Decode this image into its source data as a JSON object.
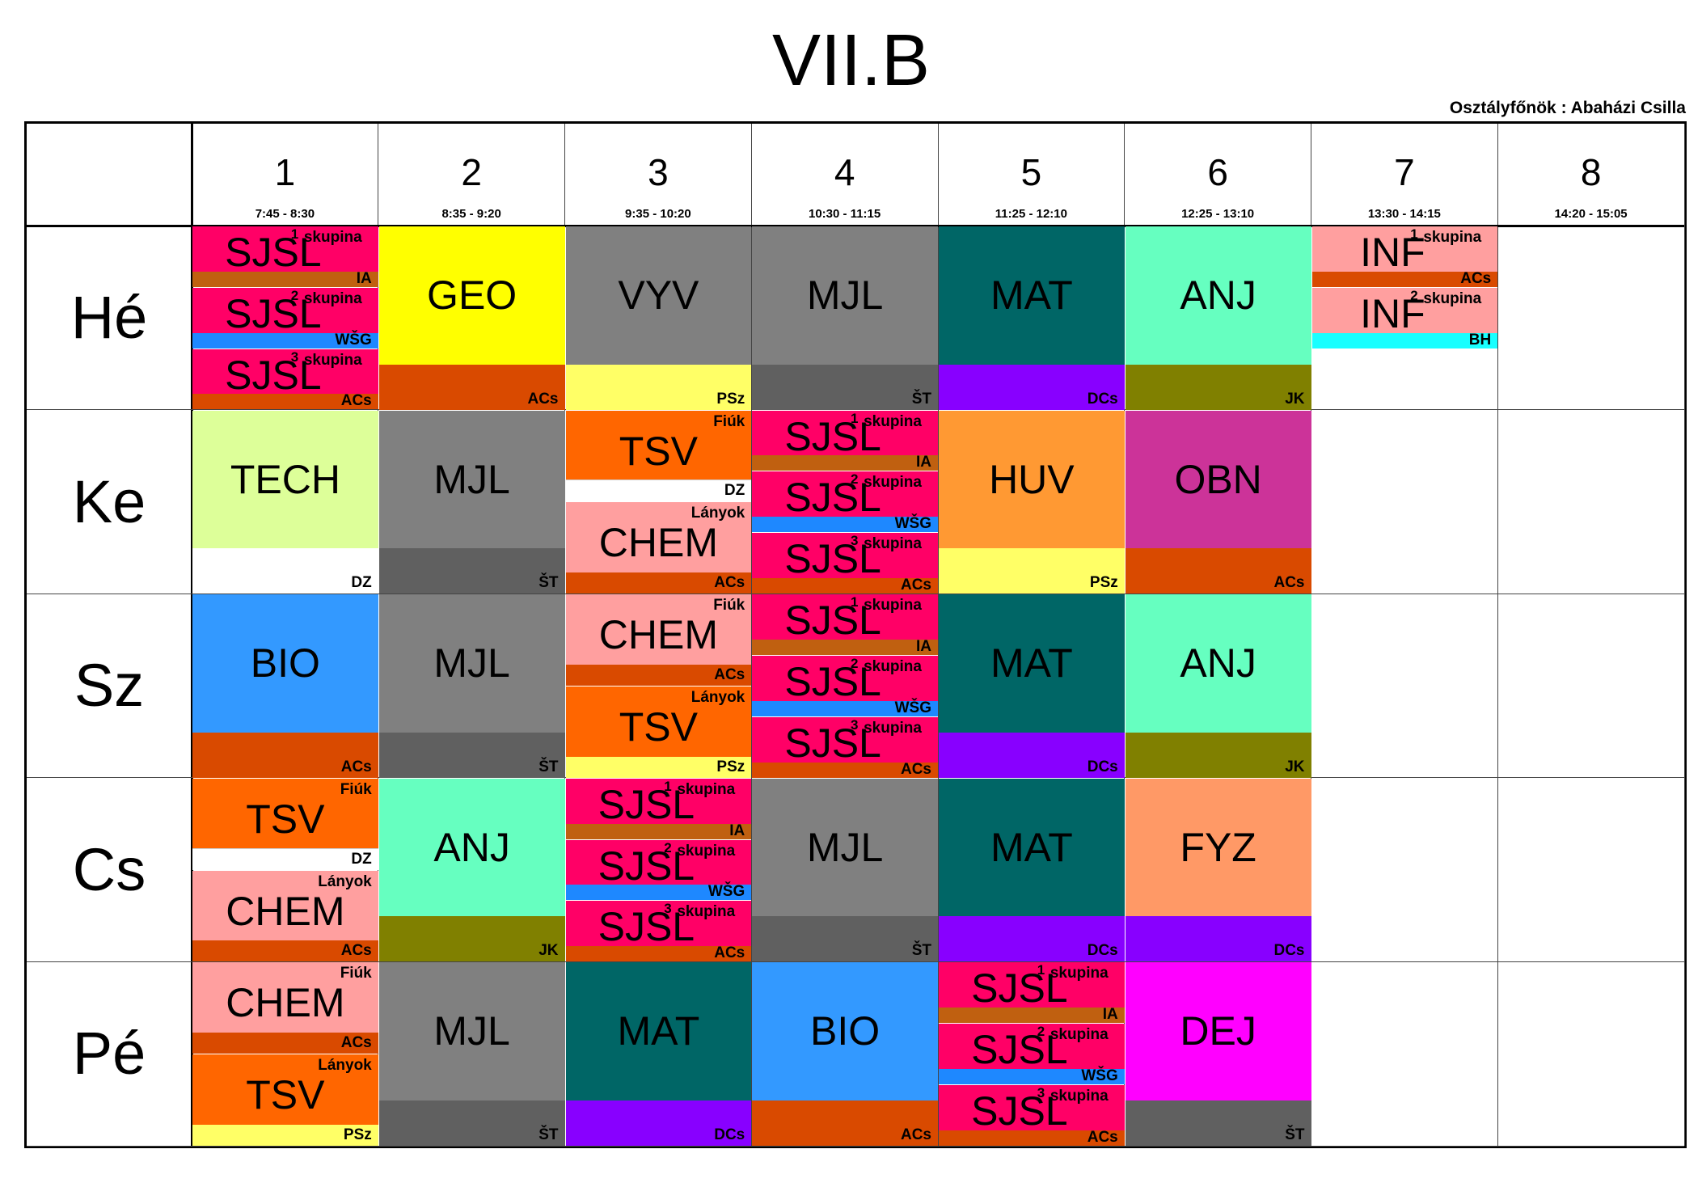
{
  "title": "VII.B",
  "class_teacher": "Osztályfőnök : Abaházi Csilla",
  "periods": [
    {
      "num": "1",
      "time": "7:45 - 8:30"
    },
    {
      "num": "2",
      "time": "8:35 - 9:20"
    },
    {
      "num": "3",
      "time": "9:35 - 10:20"
    },
    {
      "num": "4",
      "time": "10:30 - 11:15"
    },
    {
      "num": "5",
      "time": "11:25 - 12:10"
    },
    {
      "num": "6",
      "time": "12:25 - 13:10"
    },
    {
      "num": "7",
      "time": "13:30 - 14:15"
    },
    {
      "num": "8",
      "time": "14:20 - 15:05"
    }
  ],
  "days": [
    "Hé",
    "Ke",
    "Sz",
    "Cs",
    "Pé"
  ],
  "colors": {
    "SJSL": "#ff0066",
    "GEO": "#ffff00",
    "VYV": "#808080",
    "MJL": "#808080",
    "MAT": "#006666",
    "ANJ": "#66ffc0",
    "INF": "#ff9f9f",
    "TECH": "#ddff99",
    "TSV": "#ff6600",
    "CHEM": "#ff9f9f",
    "HUV": "#ff9933",
    "OBN": "#cc3399",
    "BIO": "#3399ff",
    "FYZ": "#ff9966",
    "DEJ": "#ff00ff",
    "IA": "#c06010",
    "WSG": "#1e88ff",
    "ACs": "#d94a00",
    "PSz": "#ffff66",
    "ST": "#606060",
    "DCs": "#8800ff",
    "JK": "#808000",
    "BH": "#19ffff",
    "DZ": "#ffffff"
  },
  "lessons": [
    {
      "day": 0,
      "period": 0,
      "type": "split3",
      "subject": "SJSL",
      "groups": [
        {
          "n": "1",
          "label": "skupina",
          "teacher": "IA"
        },
        {
          "n": "2",
          "label": "skupina",
          "teacher": "WŠG"
        },
        {
          "n": "3",
          "label": "skupina",
          "teacher": "ACs"
        }
      ]
    },
    {
      "day": 0,
      "period": 1,
      "type": "full",
      "subject": "GEO",
      "teacher": "ACs"
    },
    {
      "day": 0,
      "period": 2,
      "type": "full",
      "subject": "VYV",
      "teacher": "PSz"
    },
    {
      "day": 0,
      "period": 3,
      "type": "full",
      "subject": "MJL",
      "teacher": "ŠT"
    },
    {
      "day": 0,
      "period": 4,
      "type": "full",
      "subject": "MAT",
      "teacher": "DCs",
      "light": true
    },
    {
      "day": 0,
      "period": 5,
      "type": "full",
      "subject": "ANJ",
      "teacher": "JK"
    },
    {
      "day": 0,
      "period": 6,
      "type": "split2top",
      "subject": "INF",
      "groups": [
        {
          "n": "1",
          "label": "skupina",
          "teacher": "ACs"
        },
        {
          "n": "2",
          "label": "skupina",
          "teacher": "BH"
        }
      ]
    },
    {
      "day": 1,
      "period": 0,
      "type": "full",
      "subject": "TECH",
      "teacher": "DZ"
    },
    {
      "day": 1,
      "period": 1,
      "type": "full",
      "subject": "MJL",
      "teacher": "ŠT"
    },
    {
      "day": 1,
      "period": 2,
      "type": "gender",
      "top": {
        "subject": "TSV",
        "note": "Fiúk",
        "teacher": "DZ"
      },
      "bottom": {
        "subject": "CHEM",
        "note": "Lányok",
        "teacher": "ACs"
      }
    },
    {
      "day": 1,
      "period": 3,
      "type": "split3",
      "subject": "SJSL",
      "groups": [
        {
          "n": "1",
          "label": "skupina",
          "teacher": "IA"
        },
        {
          "n": "2",
          "label": "skupina",
          "teacher": "WŠG"
        },
        {
          "n": "3",
          "label": "skupina",
          "teacher": "ACs"
        }
      ]
    },
    {
      "day": 1,
      "period": 4,
      "type": "full",
      "subject": "HUV",
      "teacher": "PSz"
    },
    {
      "day": 1,
      "period": 5,
      "type": "full",
      "subject": "OBN",
      "teacher": "ACs"
    },
    {
      "day": 2,
      "period": 0,
      "type": "full",
      "subject": "BIO",
      "teacher": "ACs"
    },
    {
      "day": 2,
      "period": 1,
      "type": "full",
      "subject": "MJL",
      "teacher": "ŠT"
    },
    {
      "day": 2,
      "period": 2,
      "type": "gender",
      "top": {
        "subject": "CHEM",
        "note": "Fiúk",
        "teacher": "ACs"
      },
      "bottom": {
        "subject": "TSV",
        "note": "Lányok",
        "teacher": "PSz"
      }
    },
    {
      "day": 2,
      "period": 3,
      "type": "split3",
      "subject": "SJSL",
      "groups": [
        {
          "n": "1",
          "label": "skupina",
          "teacher": "IA"
        },
        {
          "n": "2",
          "label": "skupina",
          "teacher": "WŠG"
        },
        {
          "n": "3",
          "label": "skupina",
          "teacher": "ACs"
        }
      ]
    },
    {
      "day": 2,
      "period": 4,
      "type": "full",
      "subject": "MAT",
      "teacher": "DCs",
      "light": true
    },
    {
      "day": 2,
      "period": 5,
      "type": "full",
      "subject": "ANJ",
      "teacher": "JK"
    },
    {
      "day": 3,
      "period": 0,
      "type": "gender",
      "top": {
        "subject": "TSV",
        "note": "Fiúk",
        "teacher": "DZ"
      },
      "bottom": {
        "subject": "CHEM",
        "note": "Lányok",
        "teacher": "ACs"
      }
    },
    {
      "day": 3,
      "period": 1,
      "type": "full",
      "subject": "ANJ",
      "teacher": "JK"
    },
    {
      "day": 3,
      "period": 2,
      "type": "split3",
      "subject": "SJSL",
      "groups": [
        {
          "n": "1",
          "label": "skupina",
          "teacher": "IA"
        },
        {
          "n": "2",
          "label": "skupina",
          "teacher": "WŠG"
        },
        {
          "n": "3",
          "label": "skupina",
          "teacher": "ACs"
        }
      ]
    },
    {
      "day": 3,
      "period": 3,
      "type": "full",
      "subject": "MJL",
      "teacher": "ŠT"
    },
    {
      "day": 3,
      "period": 4,
      "type": "full",
      "subject": "MAT",
      "teacher": "DCs",
      "light": true
    },
    {
      "day": 3,
      "period": 5,
      "type": "full",
      "subject": "FYZ",
      "teacher": "DCs"
    },
    {
      "day": 4,
      "period": 0,
      "type": "gender",
      "top": {
        "subject": "CHEM",
        "note": "Fiúk",
        "teacher": "ACs"
      },
      "bottom": {
        "subject": "TSV",
        "note": "Lányok",
        "teacher": "PSz"
      }
    },
    {
      "day": 4,
      "period": 1,
      "type": "full",
      "subject": "MJL",
      "teacher": "ŠT"
    },
    {
      "day": 4,
      "period": 2,
      "type": "full",
      "subject": "MAT",
      "teacher": "DCs",
      "light": true
    },
    {
      "day": 4,
      "period": 3,
      "type": "full",
      "subject": "BIO",
      "teacher": "ACs"
    },
    {
      "day": 4,
      "period": 4,
      "type": "split3",
      "subject": "SJSL",
      "groups": [
        {
          "n": "1",
          "label": "skupina",
          "teacher": "IA"
        },
        {
          "n": "2",
          "label": "skupina",
          "teacher": "WŠG"
        },
        {
          "n": "3",
          "label": "skupina",
          "teacher": "ACs"
        }
      ]
    },
    {
      "day": 4,
      "period": 5,
      "type": "full",
      "subject": "DEJ",
      "teacher": "ŠT"
    }
  ]
}
